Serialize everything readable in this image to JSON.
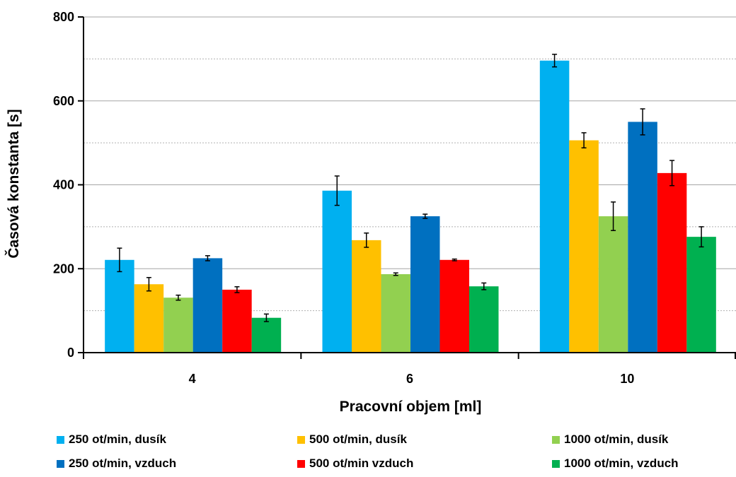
{
  "chart_data": {
    "type": "bar",
    "title": "",
    "xlabel": "Pracovní objem [ml]",
    "ylabel": "Časová konstanta [s]",
    "ylim": [
      0,
      800
    ],
    "yticks": [
      0,
      200,
      400,
      600,
      800
    ],
    "minor_gridlines": [
      100,
      300,
      500,
      700
    ],
    "categories": [
      "4",
      "6",
      "10"
    ],
    "legend_position": "bottom",
    "series": [
      {
        "name": "250 ot/min, dusík",
        "color": "#00B0F0",
        "values": [
          221,
          386,
          696
        ],
        "errors": [
          28,
          35,
          15
        ]
      },
      {
        "name": "500 ot/min, dusík",
        "color": "#FFC000",
        "values": [
          163,
          268,
          506
        ],
        "errors": [
          16,
          17,
          18
        ]
      },
      {
        "name": "1000 ot/min, dusík",
        "color": "#92D050",
        "values": [
          131,
          187,
          325
        ],
        "errors": [
          6,
          3,
          34
        ]
      },
      {
        "name": "250 ot/min, vzduch",
        "color": "#0070C0",
        "values": [
          225,
          325,
          550
        ],
        "errors": [
          6,
          5,
          31
        ]
      },
      {
        "name": "500 ot/min vzduch",
        "color": "#FF0000",
        "values": [
          150,
          221,
          428
        ],
        "errors": [
          7,
          2,
          30
        ]
      },
      {
        "name": "1000 ot/min, vzduch",
        "color": "#00B050",
        "values": [
          83,
          158,
          276
        ],
        "errors": [
          9,
          8,
          24
        ]
      }
    ]
  }
}
